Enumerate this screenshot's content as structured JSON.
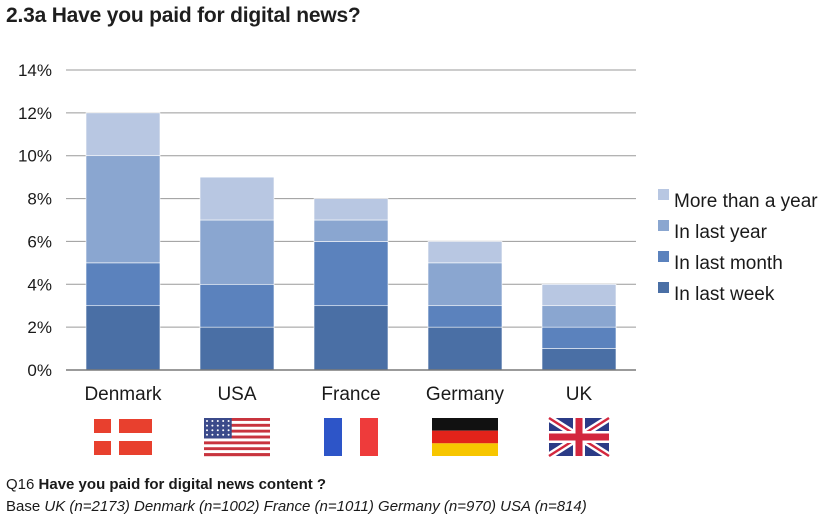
{
  "title": "2.3a Have you paid for digital news?",
  "footer": {
    "q_prefix": "Q16",
    "q_text": "Have you paid for digital news content ?",
    "base_prefix": "Base",
    "base_text": "UK (n=2173) Denmark (n=1002) France (n=1011) Germany (n=970) USA (n=814)"
  },
  "colors": {
    "in_last_week": "#4a6fa5",
    "in_last_month": "#5b82bd",
    "in_last_year": "#8aa6d0",
    "more_than_a_year": "#b8c7e2",
    "grid": "#9a9a9a"
  },
  "chart_data": {
    "type": "bar",
    "stacked": true,
    "categories": [
      "Denmark",
      "USA",
      "France",
      "Germany",
      "UK"
    ],
    "series": [
      {
        "name": "In last week",
        "values": [
          3,
          2,
          3,
          2,
          1
        ],
        "color_key": "in_last_week"
      },
      {
        "name": "In last month",
        "values": [
          2,
          2,
          3,
          1,
          1
        ],
        "color_key": "in_last_month"
      },
      {
        "name": "In last year",
        "values": [
          5,
          3,
          1,
          2,
          1
        ],
        "color_key": "in_last_year"
      },
      {
        "name": "More than a year",
        "values": [
          2,
          2,
          1,
          1,
          1
        ],
        "color_key": "more_than_a_year"
      }
    ],
    "ylim": [
      0,
      14
    ],
    "yticks": [
      "0%",
      "2%",
      "4%",
      "6%",
      "8%",
      "10%",
      "12%",
      "14%"
    ],
    "grid": true,
    "legend": {
      "placement": "right",
      "order": [
        "More than a year",
        "In last year",
        "In last month",
        "In last week"
      ]
    },
    "flags": [
      "denmark-flag",
      "usa-flag",
      "france-flag",
      "germany-flag",
      "uk-flag"
    ]
  }
}
